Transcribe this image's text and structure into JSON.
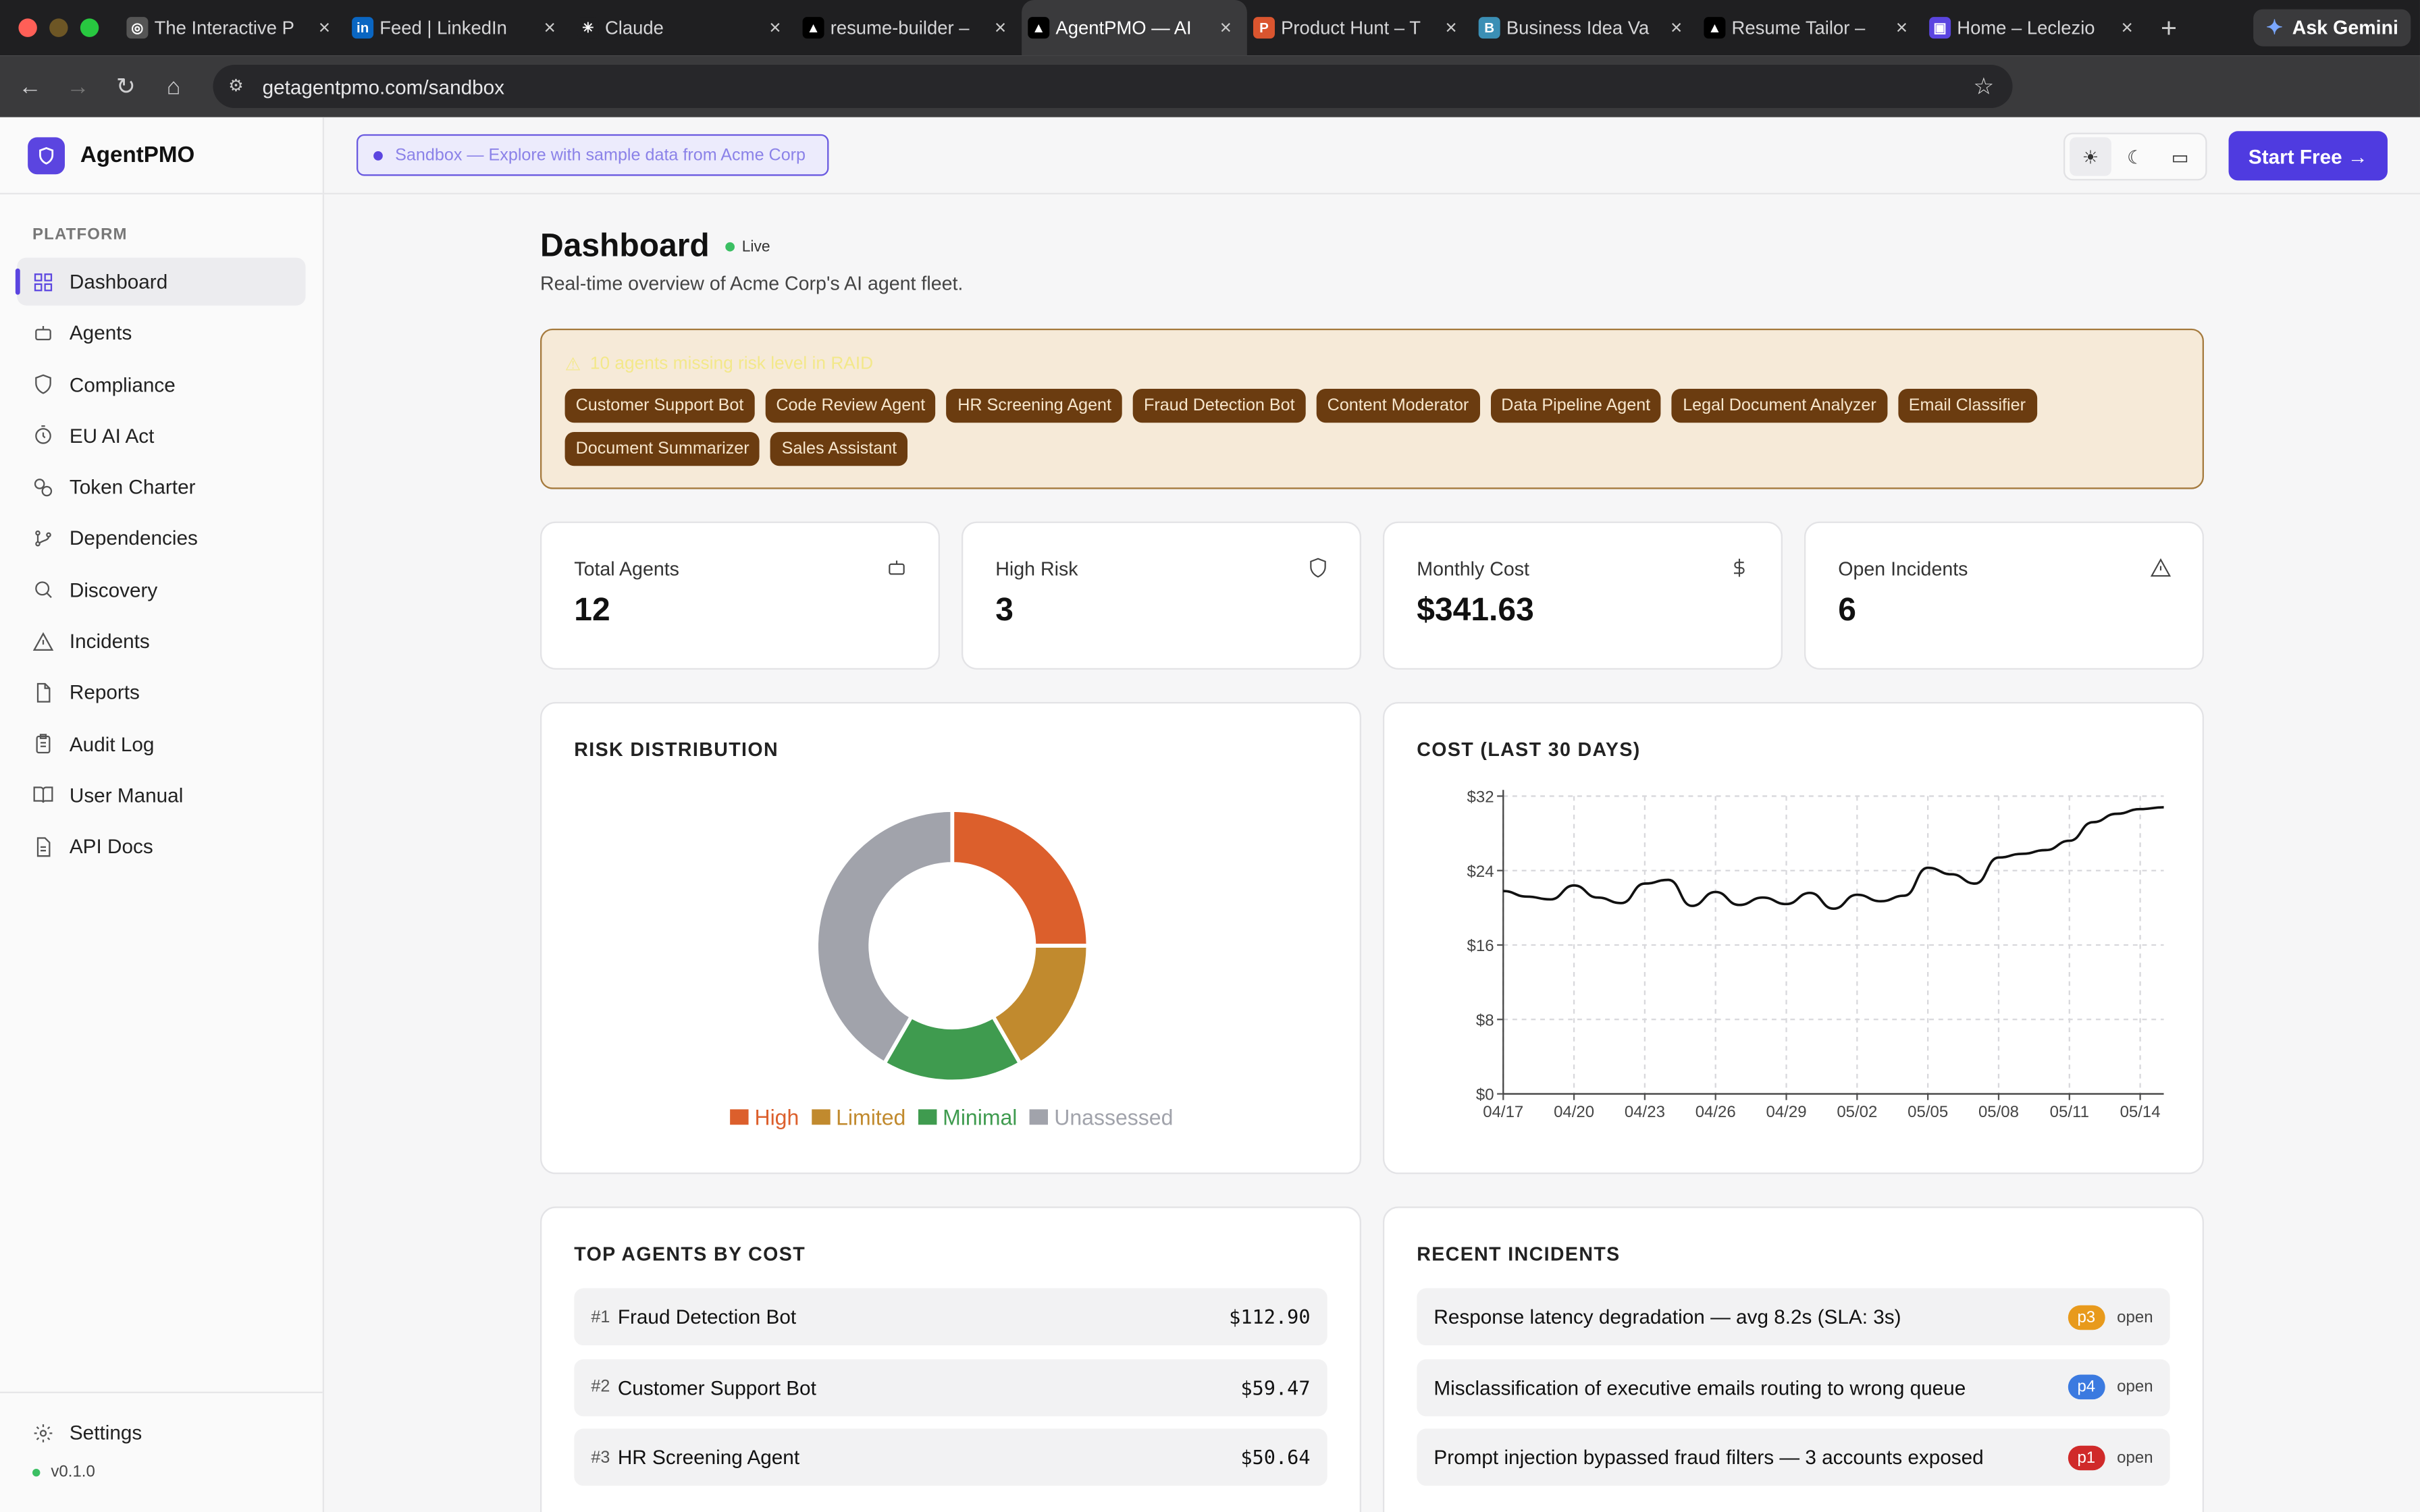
{
  "browser": {
    "tabs": [
      {
        "title": "The Interactive P",
        "fav_color": "#555",
        "fav_glyph": "◎"
      },
      {
        "title": "Feed | LinkedIn",
        "fav_color": "#0a66c2",
        "fav_glyph": "in"
      },
      {
        "title": "Claude",
        "fav_color": "#1f1f21",
        "fav_glyph": "✳"
      },
      {
        "title": "resume-builder –",
        "fav_color": "#000",
        "fav_glyph": "▲"
      },
      {
        "title": "AgentPMO — AI",
        "fav_color": "#000",
        "fav_glyph": "▲",
        "active": true
      },
      {
        "title": "Product Hunt – T",
        "fav_color": "#da552f",
        "fav_glyph": "P"
      },
      {
        "title": "Business Idea Va",
        "fav_color": "#3b8fb5",
        "fav_glyph": "B"
      },
      {
        "title": "Resume Tailor –",
        "fav_color": "#000",
        "fav_glyph": "▲"
      },
      {
        "title": "Home – Leclezio",
        "fav_color": "#5b45e0",
        "fav_glyph": "▣"
      }
    ],
    "ask_gemini": "Ask Gemini",
    "url": "getagentpmo.com/sandbox"
  },
  "app": {
    "brand": "AgentPMO",
    "nav_section": "PLATFORM",
    "nav": [
      {
        "label": "Dashboard",
        "icon": "grid-icon",
        "active": true
      },
      {
        "label": "Agents",
        "icon": "bot-icon"
      },
      {
        "label": "Compliance",
        "icon": "shield-icon"
      },
      {
        "label": "EU AI Act",
        "icon": "timer-icon"
      },
      {
        "label": "Token Charter",
        "icon": "coins-icon"
      },
      {
        "label": "Dependencies",
        "icon": "git-branch-icon"
      },
      {
        "label": "Discovery",
        "icon": "search-icon"
      },
      {
        "label": "Incidents",
        "icon": "alert-triangle-icon"
      },
      {
        "label": "Reports",
        "icon": "file-icon"
      },
      {
        "label": "Audit Log",
        "icon": "clipboard-icon"
      },
      {
        "label": "User Manual",
        "icon": "book-icon"
      },
      {
        "label": "API Docs",
        "icon": "file-text-icon"
      }
    ],
    "settings_label": "Settings",
    "version": "v0.1.0"
  },
  "header": {
    "sandbox_label": "Sandbox — Explore with sample data from Acme Corp",
    "start_free": "Start Free →"
  },
  "dashboard": {
    "title": "Dashboard",
    "live": "Live",
    "subtitle": "Real-time overview of Acme Corp's AI agent fleet.",
    "warning": "10 agents missing risk level in RAID",
    "chips": [
      "Customer Support Bot",
      "Code Review Agent",
      "HR Screening Agent",
      "Fraud Detection Bot",
      "Content Moderator",
      "Data Pipeline Agent",
      "Legal Document Analyzer",
      "Email Classifier",
      "Document Summarizer",
      "Sales Assistant"
    ],
    "stats": [
      {
        "label": "Total Agents",
        "value": "12",
        "icon": "bot-icon"
      },
      {
        "label": "High Risk",
        "value": "3",
        "icon": "shield-icon"
      },
      {
        "label": "Monthly Cost",
        "value": "$341.63",
        "icon": "dollar-icon"
      },
      {
        "label": "Open Incidents",
        "value": "6",
        "icon": "alert-triangle-icon"
      }
    ],
    "risk_title": "RISK DISTRIBUTION",
    "cost_title": "COST (LAST 30 DAYS)",
    "top_agents_title": "TOP AGENTS BY COST",
    "incidents_title": "RECENT INCIDENTS",
    "top_agents": [
      {
        "rank": "#1",
        "name": "Fraud Detection Bot",
        "cost": "$112.90"
      },
      {
        "rank": "#2",
        "name": "Customer Support Bot",
        "cost": "$59.47"
      },
      {
        "rank": "#3",
        "name": "HR Screening Agent",
        "cost": "$50.64"
      }
    ],
    "incidents": [
      {
        "title": "Response latency degradation — avg 8.2s (SLA: 3s)",
        "severity": "p3",
        "status": "open",
        "color": "#e89a1c"
      },
      {
        "title": "Misclassification of executive emails routing to wrong queue",
        "severity": "p4",
        "status": "open",
        "color": "#3b7ae0"
      },
      {
        "title": "Prompt injection bypassed fraud filters — 3 accounts exposed",
        "severity": "p1",
        "status": "open",
        "color": "#d02a2a"
      }
    ]
  },
  "chart_data": [
    {
      "type": "pie",
      "title": "RISK DISTRIBUTION",
      "labels": [
        "High",
        "Limited",
        "Minimal",
        "Unassessed"
      ],
      "values": [
        3,
        2,
        2,
        5
      ],
      "colors": [
        "#dc5f2c",
        "#c18a2e",
        "#3f9b4f",
        "#a1a3ab"
      ],
      "donut": true
    },
    {
      "type": "line",
      "title": "COST (LAST 30 DAYS)",
      "x": [
        "04/17",
        "04/18",
        "04/19",
        "04/20",
        "04/21",
        "04/22",
        "04/23",
        "04/24",
        "04/25",
        "04/26",
        "04/27",
        "04/28",
        "04/29",
        "04/30",
        "05/01",
        "05/02",
        "05/03",
        "05/04",
        "05/05",
        "05/06",
        "05/07",
        "05/08",
        "05/09",
        "05/10",
        "05/11",
        "05/12",
        "05/13",
        "05/14",
        "05/15"
      ],
      "x_ticks": [
        "04/17",
        "04/20",
        "04/23",
        "04/26",
        "04/29",
        "05/02",
        "05/05",
        "05/08",
        "05/11",
        "05/14"
      ],
      "values": [
        21.8,
        21.2,
        20.9,
        22.4,
        21.1,
        20.5,
        22.6,
        23.0,
        20.2,
        21.7,
        20.3,
        21.1,
        20.4,
        21.6,
        19.9,
        21.4,
        20.7,
        21.3,
        24.3,
        23.6,
        22.6,
        25.4,
        25.8,
        26.2,
        27.2,
        29.2,
        30.1,
        30.6,
        30.8
      ],
      "y_ticks": [
        "$0",
        "$8",
        "$16",
        "$24",
        "$32"
      ],
      "ylim": [
        0,
        32
      ],
      "grid": true,
      "color": "#111111"
    }
  ]
}
